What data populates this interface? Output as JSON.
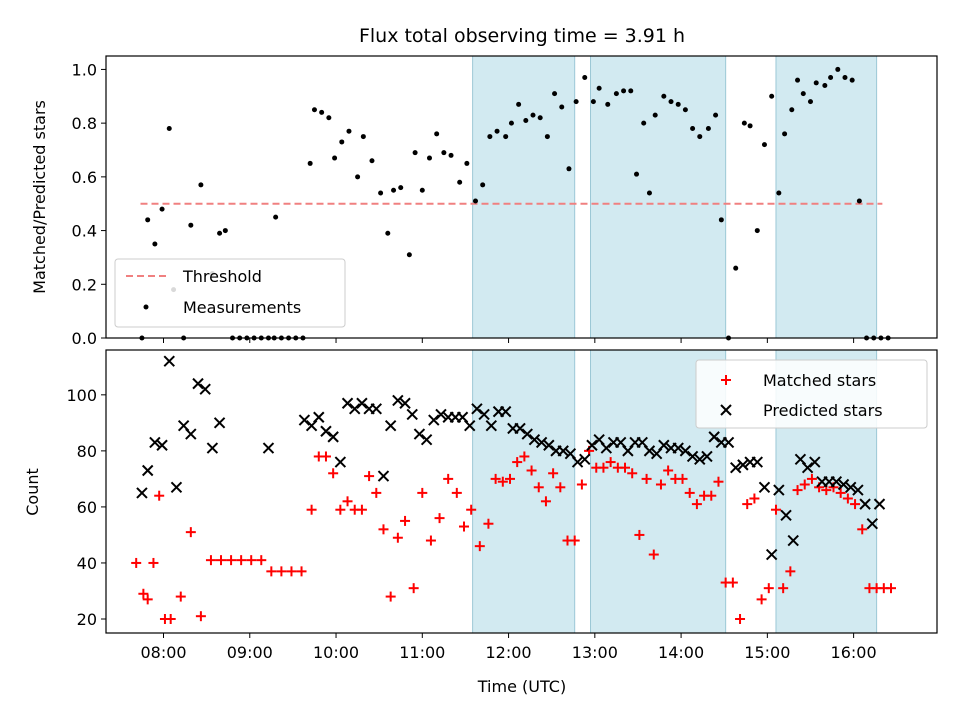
{
  "chart_data": [
    {
      "type": "scatter",
      "title": "Flux total observing time = 3.91 h",
      "xlabel": "",
      "ylabel": "Matched/Predicted stars",
      "xlim": [
        "07:20",
        "16:58"
      ],
      "ylim": [
        0,
        1.05
      ],
      "yticks": [
        0.0,
        0.2,
        0.4,
        0.6,
        0.8,
        1.0
      ],
      "ytick_labels": [
        "0.0",
        "0.2",
        "0.4",
        "0.6",
        "0.8",
        "1.0"
      ],
      "grid": false,
      "legend_position": "lower-left",
      "shaded_intervals": [
        [
          "11:35",
          "12:46"
        ],
        [
          "12:57",
          "14:31"
        ],
        [
          "15:06",
          "16:16"
        ]
      ],
      "shade_color": "#add8e6",
      "threshold": {
        "name": "Threshold",
        "value": 0.5,
        "x_range": [
          "07:44",
          "16:20"
        ],
        "color": "#f08080"
      },
      "series": [
        {
          "name": "Measurements",
          "color": "#000000",
          "x": [
            "07:45",
            "07:49",
            "07:54",
            "07:59",
            "08:04",
            "08:07",
            "08:14",
            "08:19",
            "08:26",
            "08:34",
            "08:39",
            "08:43",
            "08:48",
            "08:53",
            "08:58",
            "09:03",
            "09:08",
            "09:13",
            "09:17",
            "09:18",
            "09:22",
            "09:27",
            "09:32",
            "09:37",
            "09:42",
            "09:45",
            "09:50",
            "09:55",
            "09:59",
            "10:04",
            "10:09",
            "10:15",
            "10:19",
            "10:25",
            "10:31",
            "10:36",
            "10:40",
            "10:45",
            "10:51",
            "10:55",
            "11:00",
            "11:05",
            "11:10",
            "11:15",
            "11:20",
            "11:26",
            "11:31",
            "11:37",
            "11:42",
            "11:47",
            "11:52",
            "11:58",
            "12:02",
            "12:07",
            "12:12",
            "12:17",
            "12:22",
            "12:27",
            "12:32",
            "12:37",
            "12:42",
            "12:47",
            "12:53",
            "12:59",
            "13:03",
            "13:09",
            "13:15",
            "13:20",
            "13:25",
            "13:29",
            "13:34",
            "13:38",
            "13:42",
            "13:48",
            "13:53",
            "13:58",
            "14:03",
            "14:08",
            "14:13",
            "14:19",
            "14:24",
            "14:28",
            "14:33",
            "14:38",
            "14:44",
            "14:48",
            "14:53",
            "14:58",
            "15:03",
            "15:08",
            "15:12",
            "15:17",
            "15:21",
            "15:25",
            "15:30",
            "15:34",
            "15:40",
            "15:44",
            "15:49",
            "15:54",
            "15:59",
            "16:04",
            "16:09",
            "16:14",
            "16:19",
            "16:24"
          ],
          "y": [
            0.0,
            0.44,
            0.35,
            0.48,
            0.78,
            0.18,
            0.0,
            0.42,
            0.57,
            0.24,
            0.39,
            0.4,
            0.0,
            0.0,
            0.0,
            0.0,
            0.0,
            0.0,
            0.0,
            0.45,
            0.0,
            0.0,
            0.0,
            0.0,
            0.65,
            0.85,
            0.84,
            0.82,
            0.67,
            0.73,
            0.77,
            0.6,
            0.75,
            0.66,
            0.54,
            0.39,
            0.55,
            0.56,
            0.31,
            0.69,
            0.55,
            0.67,
            0.76,
            0.69,
            0.68,
            0.58,
            0.65,
            0.51,
            0.57,
            0.75,
            0.77,
            0.75,
            0.8,
            0.87,
            0.81,
            0.83,
            0.82,
            0.75,
            0.91,
            0.86,
            0.63,
            0.88,
            0.97,
            0.88,
            0.93,
            0.87,
            0.91,
            0.92,
            0.92,
            0.61,
            0.8,
            0.54,
            0.83,
            0.9,
            0.88,
            0.87,
            0.85,
            0.78,
            0.75,
            0.78,
            0.83,
            0.44,
            0.0,
            0.26,
            0.8,
            0.79,
            0.4,
            0.72,
            0.9,
            0.54,
            0.76,
            0.85,
            0.96,
            0.91,
            0.88,
            0.95,
            0.94,
            0.97,
            1.0,
            0.97,
            0.96,
            0.51,
            0.0,
            0.0,
            0.0,
            0.0
          ]
        }
      ]
    },
    {
      "type": "scatter",
      "title": "",
      "xlabel": "Time (UTC)",
      "ylabel": "Count",
      "xlim": [
        "07:20",
        "16:58"
      ],
      "ylim": [
        15,
        116
      ],
      "yticks": [
        20,
        40,
        60,
        80,
        100
      ],
      "ytick_labels": [
        "20",
        "40",
        "60",
        "80",
        "100"
      ],
      "xticks": [
        "08:00",
        "09:00",
        "10:00",
        "11:00",
        "12:00",
        "13:00",
        "14:00",
        "15:00",
        "16:00"
      ],
      "xtick_labels": [
        "08:00",
        "09:00",
        "10:00",
        "11:00",
        "12:00",
        "13:00",
        "14:00",
        "15:00",
        "16:00"
      ],
      "grid": false,
      "legend_position": "upper-right",
      "shaded_intervals": [
        [
          "11:35",
          "12:46"
        ],
        [
          "12:57",
          "14:31"
        ],
        [
          "15:06",
          "16:16"
        ]
      ],
      "shade_color": "#add8e6",
      "series": [
        {
          "name": "Matched stars",
          "marker": "plus",
          "color": "#ff0000",
          "x": [
            "07:41",
            "07:46",
            "07:49",
            "07:53",
            "07:57",
            "08:01",
            "08:05",
            "08:12",
            "08:19",
            "08:26",
            "08:33",
            "08:40",
            "08:47",
            "08:54",
            "09:01",
            "09:08",
            "09:15",
            "09:22",
            "09:29",
            "09:36",
            "09:43",
            "09:48",
            "09:53",
            "09:58",
            "10:03",
            "10:08",
            "10:13",
            "10:18",
            "10:23",
            "10:28",
            "10:33",
            "10:38",
            "10:43",
            "10:48",
            "10:54",
            "11:00",
            "11:06",
            "11:12",
            "11:18",
            "11:24",
            "11:29",
            "11:34",
            "11:40",
            "11:46",
            "11:51",
            "11:56",
            "12:01",
            "12:06",
            "12:11",
            "12:16",
            "12:21",
            "12:26",
            "12:31",
            "12:36",
            "12:41",
            "12:46",
            "12:51",
            "12:56",
            "13:01",
            "13:06",
            "13:11",
            "13:16",
            "13:21",
            "13:26",
            "13:31",
            "13:36",
            "13:41",
            "13:46",
            "13:51",
            "13:56",
            "14:01",
            "14:06",
            "14:11",
            "14:16",
            "14:21",
            "14:26",
            "14:31",
            "14:36",
            "14:41",
            "14:46",
            "14:51",
            "14:56",
            "15:01",
            "15:06",
            "15:11",
            "15:16",
            "15:21",
            "15:26",
            "15:31",
            "15:36",
            "15:41",
            "15:46",
            "15:51",
            "15:56",
            "16:01",
            "16:06",
            "16:11",
            "16:16",
            "16:21",
            "16:26"
          ],
          "y": [
            40,
            29,
            27,
            40,
            64,
            20,
            20,
            28,
            51,
            21,
            41,
            41,
            41,
            41,
            41,
            41,
            37,
            37,
            37,
            37,
            59,
            78,
            78,
            72,
            59,
            62,
            59,
            59,
            71,
            65,
            52,
            28,
            49,
            55,
            31,
            65,
            48,
            56,
            70,
            65,
            53,
            59,
            46,
            54,
            70,
            69,
            70,
            76,
            78,
            73,
            67,
            62,
            72,
            67,
            48,
            48,
            68,
            80,
            74,
            74,
            76,
            74,
            74,
            72,
            50,
            70,
            43,
            68,
            73,
            70,
            70,
            65,
            61,
            64,
            64,
            69,
            33,
            33,
            20,
            61,
            63,
            27,
            31,
            59,
            31,
            37,
            66,
            68,
            70,
            67,
            66,
            67,
            65,
            63,
            61,
            52,
            31,
            31,
            31,
            31
          ]
        },
        {
          "name": "Predicted stars",
          "marker": "x",
          "color": "#000000",
          "x": [
            "07:45",
            "07:49",
            "07:54",
            "07:59",
            "08:04",
            "08:09",
            "08:14",
            "08:19",
            "08:24",
            "08:29",
            "08:34",
            "08:39",
            "09:13",
            "09:38",
            "09:43",
            "09:48",
            "09:53",
            "09:58",
            "10:03",
            "10:08",
            "10:13",
            "10:18",
            "10:23",
            "10:28",
            "10:33",
            "10:38",
            "10:43",
            "10:48",
            "10:53",
            "10:58",
            "11:03",
            "11:08",
            "11:13",
            "11:18",
            "11:23",
            "11:28",
            "11:33",
            "11:38",
            "11:43",
            "11:48",
            "11:53",
            "11:58",
            "12:03",
            "12:08",
            "12:13",
            "12:18",
            "12:23",
            "12:28",
            "12:33",
            "12:38",
            "12:43",
            "12:48",
            "12:53",
            "12:58",
            "13:03",
            "13:08",
            "13:13",
            "13:18",
            "13:23",
            "13:28",
            "13:33",
            "13:38",
            "13:43",
            "13:48",
            "13:53",
            "13:58",
            "14:03",
            "14:08",
            "14:13",
            "14:18",
            "14:23",
            "14:28",
            "14:33",
            "14:38",
            "14:43",
            "14:48",
            "14:53",
            "14:58",
            "15:03",
            "15:08",
            "15:13",
            "15:18",
            "15:23",
            "15:28",
            "15:33",
            "15:38",
            "15:43",
            "15:48",
            "15:53",
            "15:58",
            "16:03",
            "16:08",
            "16:13",
            "16:18"
          ],
          "y": [
            65,
            73,
            83,
            82,
            112,
            67,
            89,
            86,
            104,
            102,
            81,
            90,
            81,
            91,
            89,
            92,
            87,
            85,
            76,
            97,
            95,
            97,
            95,
            95,
            71,
            89,
            98,
            97,
            93,
            86,
            84,
            91,
            93,
            92,
            92,
            92,
            89,
            95,
            93,
            89,
            94,
            94,
            88,
            88,
            86,
            84,
            83,
            82,
            80,
            80,
            79,
            76,
            77,
            82,
            84,
            81,
            83,
            83,
            80,
            83,
            83,
            80,
            79,
            82,
            81,
            81,
            80,
            78,
            77,
            78,
            85,
            83,
            83,
            74,
            75,
            76,
            76,
            67,
            43,
            66,
            57,
            48,
            77,
            74,
            76,
            69,
            69,
            69,
            68,
            67,
            66,
            61,
            54,
            61
          ]
        }
      ]
    }
  ]
}
